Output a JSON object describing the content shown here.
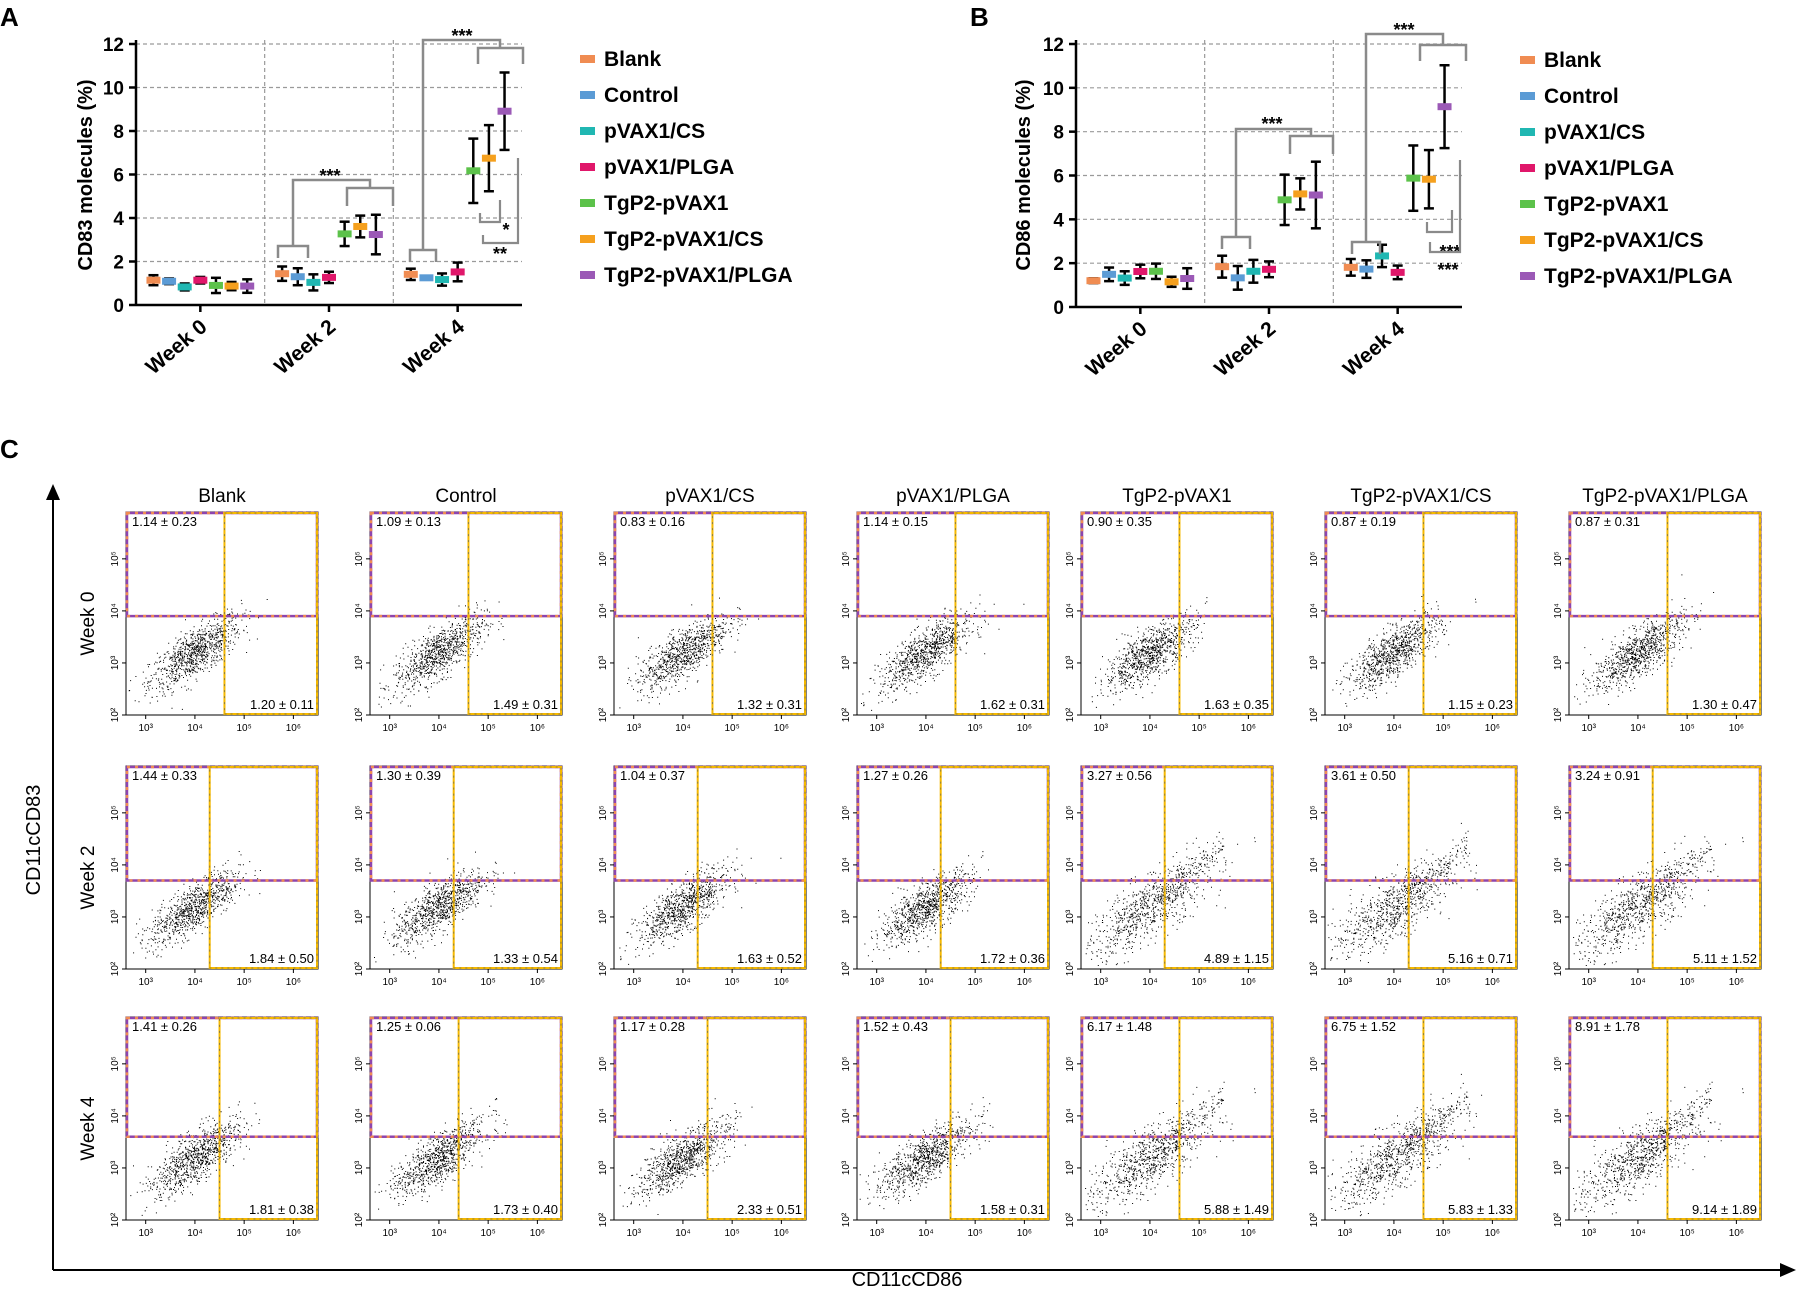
{
  "panels": {
    "a_letter": "A",
    "b_letter": "B",
    "c_letter": "C"
  },
  "legend": {
    "colors": [
      "#f08c52",
      "#5b9bd5",
      "#20b7b2",
      "#e0176a",
      "#5cc24a",
      "#f5a01e",
      "#9b59b6"
    ]
  },
  "chart_data": [
    {
      "type": "errorbar",
      "title": "",
      "ylabel": "CD83 molecules (%)",
      "xlabel": "",
      "ylim": [
        0,
        12
      ],
      "yticks": [
        "0",
        "2",
        "4",
        "6",
        "8",
        "10",
        "12"
      ],
      "categories": [
        "Week 0",
        "Week 2",
        "Week 4"
      ],
      "series": [
        {
          "name": "Blank",
          "values": [
            1.14,
            1.44,
            1.41
          ],
          "errors": [
            0.23,
            0.33,
            0.26
          ]
        },
        {
          "name": "Control",
          "values": [
            1.09,
            1.3,
            1.25
          ],
          "errors": [
            0.13,
            0.39,
            0.06
          ]
        },
        {
          "name": "pVAX1/CS",
          "values": [
            0.83,
            1.04,
            1.17
          ],
          "errors": [
            0.16,
            0.37,
            0.28
          ]
        },
        {
          "name": "pVAX1/PLGA",
          "values": [
            1.14,
            1.27,
            1.52
          ],
          "errors": [
            0.15,
            0.26,
            0.43
          ]
        },
        {
          "name": "TgP2-pVAX1",
          "values": [
            0.9,
            3.27,
            6.17
          ],
          "errors": [
            0.35,
            0.56,
            1.48
          ]
        },
        {
          "name": "TgP2-pVAX1/CS",
          "values": [
            0.87,
            3.61,
            6.75
          ],
          "errors": [
            0.19,
            0.5,
            1.52
          ]
        },
        {
          "name": "TgP2-pVAX1/PLGA",
          "values": [
            0.87,
            3.24,
            8.91
          ],
          "errors": [
            0.31,
            0.91,
            1.78
          ]
        }
      ],
      "annotations": [
        "***",
        "***",
        "*",
        "**"
      ]
    },
    {
      "type": "errorbar",
      "title": "",
      "ylabel": "CD86 molecules (%)",
      "xlabel": "",
      "ylim": [
        0,
        12
      ],
      "yticks": [
        "0",
        "2",
        "4",
        "6",
        "8",
        "10",
        "12"
      ],
      "categories": [
        "Week 0",
        "Week 2",
        "Week 4"
      ],
      "series": [
        {
          "name": "Blank",
          "values": [
            1.2,
            1.84,
            1.81
          ],
          "errors": [
            0.11,
            0.5,
            0.38
          ]
        },
        {
          "name": "Control",
          "values": [
            1.49,
            1.33,
            1.73
          ],
          "errors": [
            0.31,
            0.54,
            0.4
          ]
        },
        {
          "name": "pVAX1/CS",
          "values": [
            1.32,
            1.63,
            2.33
          ],
          "errors": [
            0.31,
            0.52,
            0.51
          ]
        },
        {
          "name": "pVAX1/PLGA",
          "values": [
            1.62,
            1.72,
            1.58
          ],
          "errors": [
            0.31,
            0.36,
            0.31
          ]
        },
        {
          "name": "TgP2-pVAX1",
          "values": [
            1.63,
            4.89,
            5.88
          ],
          "errors": [
            0.35,
            1.15,
            1.49
          ]
        },
        {
          "name": "TgP2-pVAX1/CS",
          "values": [
            1.15,
            5.16,
            5.83
          ],
          "errors": [
            0.23,
            0.71,
            1.33
          ]
        },
        {
          "name": "TgP2-pVAX1/PLGA",
          "values": [
            1.3,
            5.11,
            9.14
          ],
          "errors": [
            0.47,
            1.52,
            1.89
          ]
        }
      ],
      "annotations": [
        "***",
        "***",
        "***",
        "***"
      ]
    },
    {
      "type": "scatter",
      "title": "",
      "xlabel": "CD11cCD86",
      "ylabel": "CD11cCD83",
      "x_scale": "log",
      "y_scale": "log",
      "x_ticks": [
        "10³",
        "10⁴",
        "10⁵",
        "10⁶"
      ],
      "y_ticks": [
        "10²",
        "10³",
        "10⁴",
        "10⁵"
      ],
      "columns": [
        "Blank",
        "Control",
        "pVAX1/CS",
        "pVAX1/PLGA",
        "TgP2-pVAX1",
        "TgP2-pVAX1/CS",
        "TgP2-pVAX1/PLGA"
      ],
      "rows": [
        "Week 0",
        "Week 2",
        "Week 4"
      ],
      "upper_left": [
        [
          "1.14 ± 0.23",
          "1.09 ± 0.13",
          "0.83 ± 0.16",
          "1.14 ± 0.15",
          "0.90 ± 0.35",
          "0.87 ± 0.19",
          "0.87 ± 0.31"
        ],
        [
          "1.44 ± 0.33",
          "1.30 ± 0.39",
          "1.04 ± 0.37",
          "1.27 ± 0.26",
          "3.27 ± 0.56",
          "3.61 ± 0.50",
          "3.24 ± 0.91"
        ],
        [
          "1.41 ± 0.26",
          "1.25 ± 0.06",
          "1.17 ± 0.28",
          "1.52 ± 0.43",
          "6.17 ± 1.48",
          "6.75 ± 1.52",
          "8.91 ± 1.78"
        ]
      ],
      "lower_right": [
        [
          "1.20 ± 0.11",
          "1.49 ± 0.31",
          "1.32 ± 0.31",
          "1.62 ± 0.31",
          "1.63 ± 0.35",
          "1.15 ± 0.23",
          "1.30 ± 0.47"
        ],
        [
          "1.84 ± 0.50",
          "1.33 ± 0.54",
          "1.63 ± 0.52",
          "1.72 ± 0.36",
          "4.89 ± 1.15",
          "5.16 ± 0.71",
          "5.11 ± 1.52"
        ],
        [
          "1.81 ± 0.38",
          "1.73 ± 0.40",
          "2.33 ± 0.51",
          "1.58 ± 0.31",
          "5.88 ± 1.49",
          "5.83 ± 1.33",
          "9.14 ± 1.89"
        ]
      ],
      "gate_x": [
        [
          4.6,
          4.6,
          4.6,
          4.6,
          4.6,
          4.6,
          4.6
        ],
        [
          4.3,
          4.3,
          4.3,
          4.3,
          4.3,
          4.3,
          4.3
        ],
        [
          4.5,
          4.4,
          4.5,
          4.5,
          4.6,
          4.6,
          4.6
        ]
      ],
      "gate_y": [
        [
          3.9,
          3.9,
          3.9,
          3.9,
          3.9,
          3.9,
          3.9
        ],
        [
          3.7,
          3.7,
          3.7,
          3.7,
          3.7,
          3.7,
          3.7
        ],
        [
          3.6,
          3.6,
          3.6,
          3.6,
          3.6,
          3.6,
          3.6
        ]
      ],
      "colors": {
        "quadrant_upper": "#8e44ad",
        "quadrant_right": "#f5b800",
        "dots": "#000000"
      }
    }
  ]
}
